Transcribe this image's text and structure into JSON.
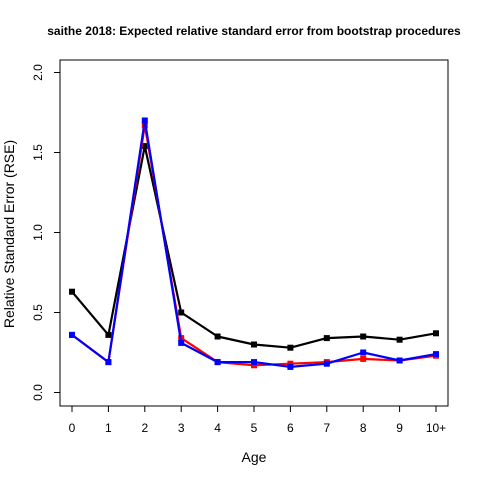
{
  "chart_data": {
    "type": "line",
    "title": "saithe 2018: Expected relative standard error from bootstrap procedures",
    "xlabel": "Age",
    "ylabel": "Relative Standard Error (RSE)",
    "categories": [
      "0",
      "1",
      "2",
      "3",
      "4",
      "5",
      "6",
      "7",
      "8",
      "9",
      "10+"
    ],
    "ylim": [
      0,
      2
    ],
    "yticks": [
      "0.0",
      "0.5",
      "1.0",
      "1.5",
      "2.0"
    ],
    "grid": false,
    "legend": "none",
    "series": [
      {
        "color": "#000000",
        "values": [
          0.63,
          0.36,
          1.54,
          0.5,
          0.35,
          0.3,
          0.28,
          0.34,
          0.35,
          0.33,
          0.37
        ]
      },
      {
        "color": "#ff0000",
        "values": [
          0.36,
          0.19,
          1.67,
          0.34,
          0.19,
          0.17,
          0.18,
          0.19,
          0.21,
          0.2,
          0.23
        ]
      },
      {
        "color": "#0000ff",
        "values": [
          0.36,
          0.19,
          1.7,
          0.31,
          0.19,
          0.19,
          0.16,
          0.18,
          0.25,
          0.2,
          0.24
        ]
      }
    ]
  }
}
